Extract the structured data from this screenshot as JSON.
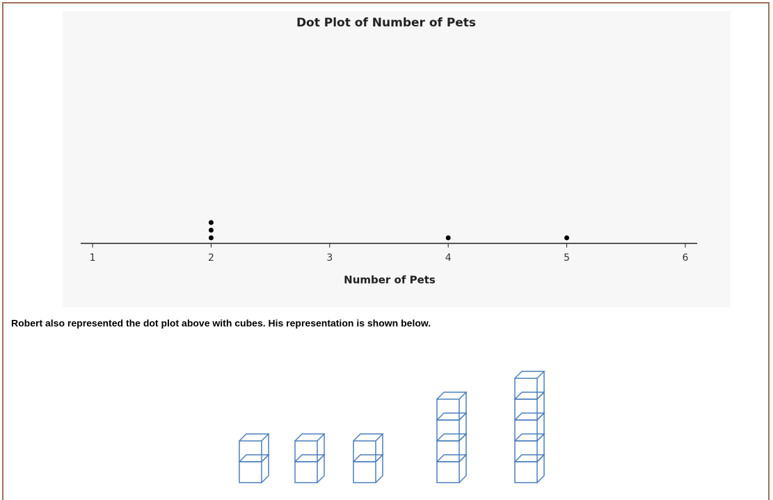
{
  "chart_data": {
    "type": "dot",
    "title": "Dot Plot of Number of Pets",
    "x_label": "Number of Pets",
    "values": [
      2,
      2,
      2,
      4,
      5
    ],
    "color": "#000000",
    "xlim": [
      0.9,
      6.1
    ],
    "xticks": [
      1,
      2,
      3,
      4,
      5,
      6
    ]
  },
  "text": "Robert also represented the dot plot above with cubes.  His representation is shown below.",
  "cubes": [
    2,
    2,
    2,
    4,
    5
  ]
}
